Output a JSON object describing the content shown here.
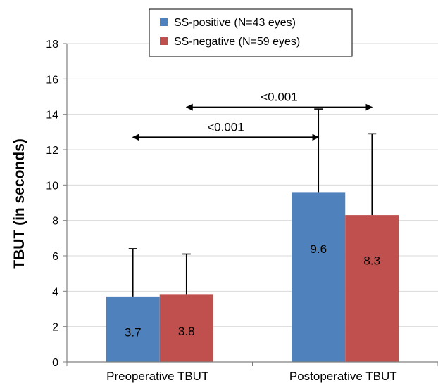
{
  "chart_data": {
    "type": "bar",
    "title": "",
    "xlabel": "",
    "ylabel": "TBUT (in seconds)",
    "ylim": [
      0,
      18
    ],
    "yticks": [
      0,
      2,
      4,
      6,
      8,
      10,
      12,
      14,
      16,
      18
    ],
    "categories": [
      "Preoperative TBUT",
      "Postoperative TBUT"
    ],
    "grid": true,
    "legend_position": "top-center",
    "series": [
      {
        "name": "SS-positive (N=43 eyes)",
        "color": "#4F81BD",
        "values": [
          3.7,
          9.6
        ],
        "error_upper": [
          6.4,
          14.3
        ],
        "labels": [
          "3.7",
          "9.6"
        ]
      },
      {
        "name": "SS-negative (N=59 eyes)",
        "color": "#C0504D",
        "values": [
          3.8,
          8.3
        ],
        "error_upper": [
          6.1,
          12.9
        ],
        "labels": [
          "3.8",
          "8.3"
        ]
      }
    ],
    "annotations": [
      {
        "text": "<0.001",
        "from": "Preoperative TBUT",
        "to": "Postoperative TBUT",
        "series": "SS-positive (N=43 eyes)"
      },
      {
        "text": "<0.001",
        "from": "Preoperative TBUT",
        "to": "Postoperative TBUT",
        "series": "SS-negative (N=59 eyes)"
      }
    ]
  }
}
